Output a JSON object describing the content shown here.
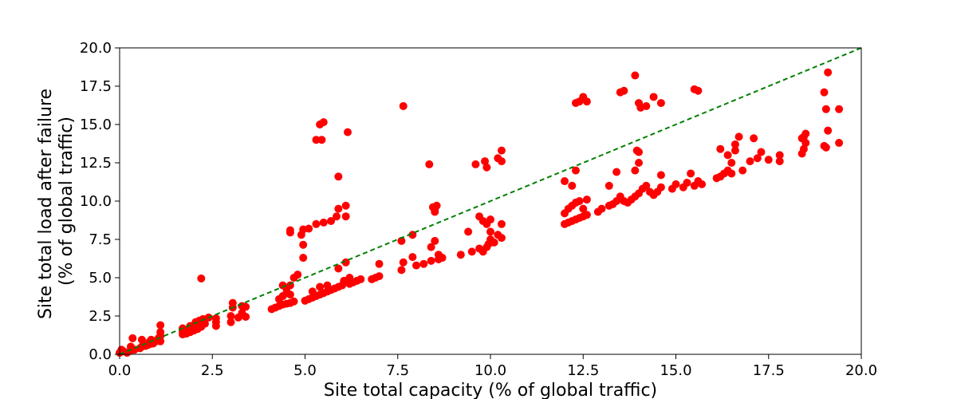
{
  "chart_data": {
    "type": "scatter",
    "title": "",
    "xlabel": "Site total capacity (% of global traffic)",
    "ylabel_lines": [
      "Site total load after failure",
      "(% of global traffic)"
    ],
    "xlim": [
      0,
      20
    ],
    "ylim": [
      0,
      20
    ],
    "x_ticks": [
      0,
      2.5,
      5,
      7.5,
      10,
      12.5,
      15,
      17.5,
      20
    ],
    "y_ticks": [
      0,
      2.5,
      5,
      7.5,
      10,
      12.5,
      15,
      17.5,
      20
    ],
    "x_tick_labels": [
      "0.0",
      "2.5",
      "5.0",
      "7.5",
      "10.0",
      "12.5",
      "15.0",
      "17.5",
      "20.0"
    ],
    "y_tick_labels": [
      "0.0",
      "2.5",
      "5.0",
      "7.5",
      "10.0",
      "12.5",
      "15.0",
      "17.5",
      "20.0"
    ],
    "grid": false,
    "colors": {
      "points": "#ff0000",
      "reference_line": "#008000"
    },
    "reference_line": {
      "style": "dashed",
      "from": [
        0,
        0
      ],
      "to": [
        20,
        20
      ]
    },
    "points": [
      [
        0.0,
        0.1
      ],
      [
        0.05,
        0.3
      ],
      [
        0.1,
        0.2
      ],
      [
        0.2,
        0.1
      ],
      [
        0.3,
        0.25
      ],
      [
        0.3,
        0.5
      ],
      [
        0.35,
        1.05
      ],
      [
        0.4,
        0.3
      ],
      [
        0.55,
        0.4
      ],
      [
        0.6,
        0.5
      ],
      [
        0.6,
        0.95
      ],
      [
        0.7,
        0.55
      ],
      [
        0.75,
        0.6
      ],
      [
        0.8,
        0.65
      ],
      [
        0.8,
        0.8
      ],
      [
        0.85,
        0.95
      ],
      [
        0.9,
        0.7
      ],
      [
        0.95,
        0.8
      ],
      [
        1.0,
        0.9
      ],
      [
        1.05,
        1.05
      ],
      [
        1.1,
        0.85
      ],
      [
        1.1,
        1.2
      ],
      [
        1.1,
        1.45
      ],
      [
        1.1,
        1.9
      ],
      [
        1.7,
        1.3
      ],
      [
        1.7,
        1.5
      ],
      [
        1.7,
        1.7
      ],
      [
        1.8,
        1.35
      ],
      [
        1.85,
        1.6
      ],
      [
        1.9,
        1.45
      ],
      [
        1.9,
        1.85
      ],
      [
        2.0,
        1.55
      ],
      [
        2.0,
        1.9
      ],
      [
        2.05,
        2.1
      ],
      [
        2.1,
        1.65
      ],
      [
        2.15,
        2.2
      ],
      [
        2.2,
        1.8
      ],
      [
        2.2,
        4.95
      ],
      [
        2.25,
        2.3
      ],
      [
        2.3,
        2.0
      ],
      [
        2.4,
        2.4
      ],
      [
        2.6,
        1.85
      ],
      [
        2.6,
        2.1
      ],
      [
        2.6,
        2.35
      ],
      [
        3.0,
        2.1
      ],
      [
        3.0,
        2.5
      ],
      [
        3.05,
        3.05
      ],
      [
        3.05,
        3.35
      ],
      [
        3.2,
        2.4
      ],
      [
        3.3,
        2.7
      ],
      [
        3.3,
        3.15
      ],
      [
        3.4,
        2.45
      ],
      [
        3.4,
        3.1
      ],
      [
        4.1,
        2.95
      ],
      [
        4.2,
        3.05
      ],
      [
        4.3,
        3.15
      ],
      [
        4.4,
        3.25
      ],
      [
        4.5,
        3.3
      ],
      [
        4.6,
        3.35
      ],
      [
        4.7,
        3.45
      ],
      [
        4.3,
        3.6
      ],
      [
        4.4,
        3.8
      ],
      [
        4.5,
        4.0
      ],
      [
        4.6,
        3.9
      ],
      [
        4.5,
        4.3
      ],
      [
        4.4,
        4.5
      ],
      [
        4.6,
        4.5
      ],
      [
        4.7,
        5.0
      ],
      [
        4.8,
        5.2
      ],
      [
        4.6,
        7.95
      ],
      [
        4.6,
        8.1
      ],
      [
        4.9,
        7.8
      ],
      [
        4.95,
        7.15
      ],
      [
        4.95,
        6.3
      ],
      [
        4.95,
        8.15
      ],
      [
        5.1,
        8.2
      ],
      [
        5.0,
        3.5
      ],
      [
        5.1,
        3.6
      ],
      [
        5.2,
        3.7
      ],
      [
        5.3,
        3.8
      ],
      [
        5.4,
        3.9
      ],
      [
        5.5,
        4.0
      ],
      [
        5.6,
        4.1
      ],
      [
        5.7,
        4.2
      ],
      [
        5.2,
        4.1
      ],
      [
        5.4,
        4.4
      ],
      [
        5.6,
        4.5
      ],
      [
        5.3,
        8.5
      ],
      [
        5.5,
        8.6
      ],
      [
        5.7,
        8.7
      ],
      [
        5.3,
        14.0
      ],
      [
        5.45,
        14.0
      ],
      [
        5.4,
        15.0
      ],
      [
        5.5,
        15.15
      ],
      [
        5.8,
        4.3
      ],
      [
        5.9,
        4.4
      ],
      [
        5.9,
        5.6
      ],
      [
        5.9,
        9.5
      ],
      [
        5.85,
        9.0
      ],
      [
        5.9,
        11.6
      ],
      [
        6.1,
        9.7
      ],
      [
        6.1,
        9.0
      ],
      [
        6.0,
        4.5
      ],
      [
        6.05,
        4.8
      ],
      [
        6.1,
        6.0
      ],
      [
        6.2,
        4.6
      ],
      [
        6.3,
        4.7
      ],
      [
        6.4,
        4.8
      ],
      [
        6.5,
        4.9
      ],
      [
        6.2,
        5.0
      ],
      [
        6.15,
        14.5
      ],
      [
        6.8,
        4.9
      ],
      [
        6.9,
        5.0
      ],
      [
        7.0,
        5.1
      ],
      [
        7.0,
        5.9
      ],
      [
        7.6,
        5.5
      ],
      [
        7.65,
        6.0
      ],
      [
        7.6,
        7.4
      ],
      [
        7.65,
        16.2
      ],
      [
        7.9,
        6.35
      ],
      [
        7.9,
        7.8
      ],
      [
        8.0,
        5.8
      ],
      [
        8.2,
        5.9
      ],
      [
        8.35,
        12.4
      ],
      [
        8.4,
        6.1
      ],
      [
        8.45,
        9.6
      ],
      [
        8.5,
        9.5
      ],
      [
        8.55,
        9.7
      ],
      [
        8.5,
        9.3
      ],
      [
        8.6,
        6.2
      ],
      [
        8.6,
        6.5
      ],
      [
        8.5,
        7.4
      ],
      [
        8.4,
        7.0
      ],
      [
        8.7,
        6.3
      ],
      [
        9.2,
        6.5
      ],
      [
        9.5,
        6.7
      ],
      [
        9.4,
        8.0
      ],
      [
        9.6,
        12.4
      ],
      [
        9.7,
        6.9
      ],
      [
        9.7,
        9.0
      ],
      [
        9.8,
        6.7
      ],
      [
        9.85,
        12.6
      ],
      [
        9.9,
        12.2
      ],
      [
        9.8,
        8.7
      ],
      [
        9.9,
        8.5
      ],
      [
        9.9,
        7.0
      ],
      [
        9.95,
        7.2
      ],
      [
        10.0,
        7.5
      ],
      [
        10.0,
        8.0
      ],
      [
        10.0,
        8.8
      ],
      [
        10.1,
        7.3
      ],
      [
        10.2,
        7.8
      ],
      [
        10.2,
        12.8
      ],
      [
        10.3,
        13.3
      ],
      [
        10.3,
        12.6
      ],
      [
        10.3,
        8.5
      ],
      [
        10.3,
        7.6
      ],
      [
        12.0,
        8.5
      ],
      [
        12.1,
        8.6
      ],
      [
        12.2,
        8.7
      ],
      [
        12.3,
        8.8
      ],
      [
        12.4,
        8.9
      ],
      [
        12.5,
        9.0
      ],
      [
        12.6,
        9.1
      ],
      [
        12.0,
        9.2
      ],
      [
        12.1,
        9.5
      ],
      [
        12.2,
        9.7
      ],
      [
        12.3,
        9.9
      ],
      [
        12.4,
        10.0
      ],
      [
        12.5,
        9.5
      ],
      [
        12.6,
        10.1
      ],
      [
        12.0,
        11.3
      ],
      [
        12.2,
        11.0
      ],
      [
        12.3,
        12.0
      ],
      [
        12.3,
        16.4
      ],
      [
        12.4,
        16.5
      ],
      [
        12.5,
        16.8
      ],
      [
        12.6,
        16.5
      ],
      [
        12.9,
        9.3
      ],
      [
        13.0,
        9.5
      ],
      [
        13.2,
        9.7
      ],
      [
        13.3,
        9.8
      ],
      [
        13.4,
        10.0
      ],
      [
        13.5,
        10.3
      ],
      [
        13.6,
        10.0
      ],
      [
        13.7,
        9.9
      ],
      [
        13.8,
        10.1
      ],
      [
        13.9,
        10.3
      ],
      [
        14.0,
        10.5
      ],
      [
        14.1,
        10.8
      ],
      [
        14.2,
        11.0
      ],
      [
        14.3,
        10.6
      ],
      [
        13.2,
        11.0
      ],
      [
        13.4,
        11.9
      ],
      [
        13.5,
        17.1
      ],
      [
        13.6,
        17.2
      ],
      [
        13.9,
        18.2
      ],
      [
        14.0,
        16.4
      ],
      [
        14.05,
        16.1
      ],
      [
        14.2,
        16.2
      ],
      [
        14.4,
        16.8
      ],
      [
        14.6,
        16.4
      ],
      [
        13.95,
        13.3
      ],
      [
        14.0,
        13.2
      ],
      [
        14.0,
        12.5
      ],
      [
        13.9,
        12.0
      ],
      [
        14.4,
        10.4
      ],
      [
        14.5,
        10.6
      ],
      [
        14.6,
        10.9
      ],
      [
        14.6,
        11.7
      ],
      [
        14.9,
        10.8
      ],
      [
        15.0,
        11.1
      ],
      [
        15.2,
        10.9
      ],
      [
        15.3,
        11.2
      ],
      [
        15.4,
        11.8
      ],
      [
        15.5,
        17.3
      ],
      [
        15.6,
        17.2
      ],
      [
        15.5,
        11.0
      ],
      [
        15.6,
        11.3
      ],
      [
        15.7,
        11.1
      ],
      [
        16.1,
        11.5
      ],
      [
        16.2,
        11.6
      ],
      [
        16.2,
        13.4
      ],
      [
        16.3,
        11.8
      ],
      [
        16.4,
        12.0
      ],
      [
        16.4,
        13.0
      ],
      [
        16.5,
        11.8
      ],
      [
        16.5,
        12.5
      ],
      [
        16.6,
        13.3
      ],
      [
        16.6,
        13.7
      ],
      [
        16.7,
        14.2
      ],
      [
        16.8,
        12.0
      ],
      [
        17.0,
        12.6
      ],
      [
        17.1,
        14.1
      ],
      [
        17.2,
        12.8
      ],
      [
        17.3,
        13.2
      ],
      [
        17.5,
        12.7
      ],
      [
        17.8,
        12.6
      ],
      [
        17.8,
        13.0
      ],
      [
        18.4,
        13.1
      ],
      [
        18.45,
        13.4
      ],
      [
        18.5,
        13.8
      ],
      [
        18.4,
        14.1
      ],
      [
        18.5,
        14.4
      ],
      [
        18.45,
        14.2
      ],
      [
        19.0,
        13.6
      ],
      [
        19.05,
        13.5
      ],
      [
        19.0,
        17.1
      ],
      [
        19.05,
        16.0
      ],
      [
        19.1,
        14.6
      ],
      [
        19.1,
        18.4
      ],
      [
        19.4,
        13.8
      ],
      [
        19.4,
        16.0
      ]
    ]
  }
}
